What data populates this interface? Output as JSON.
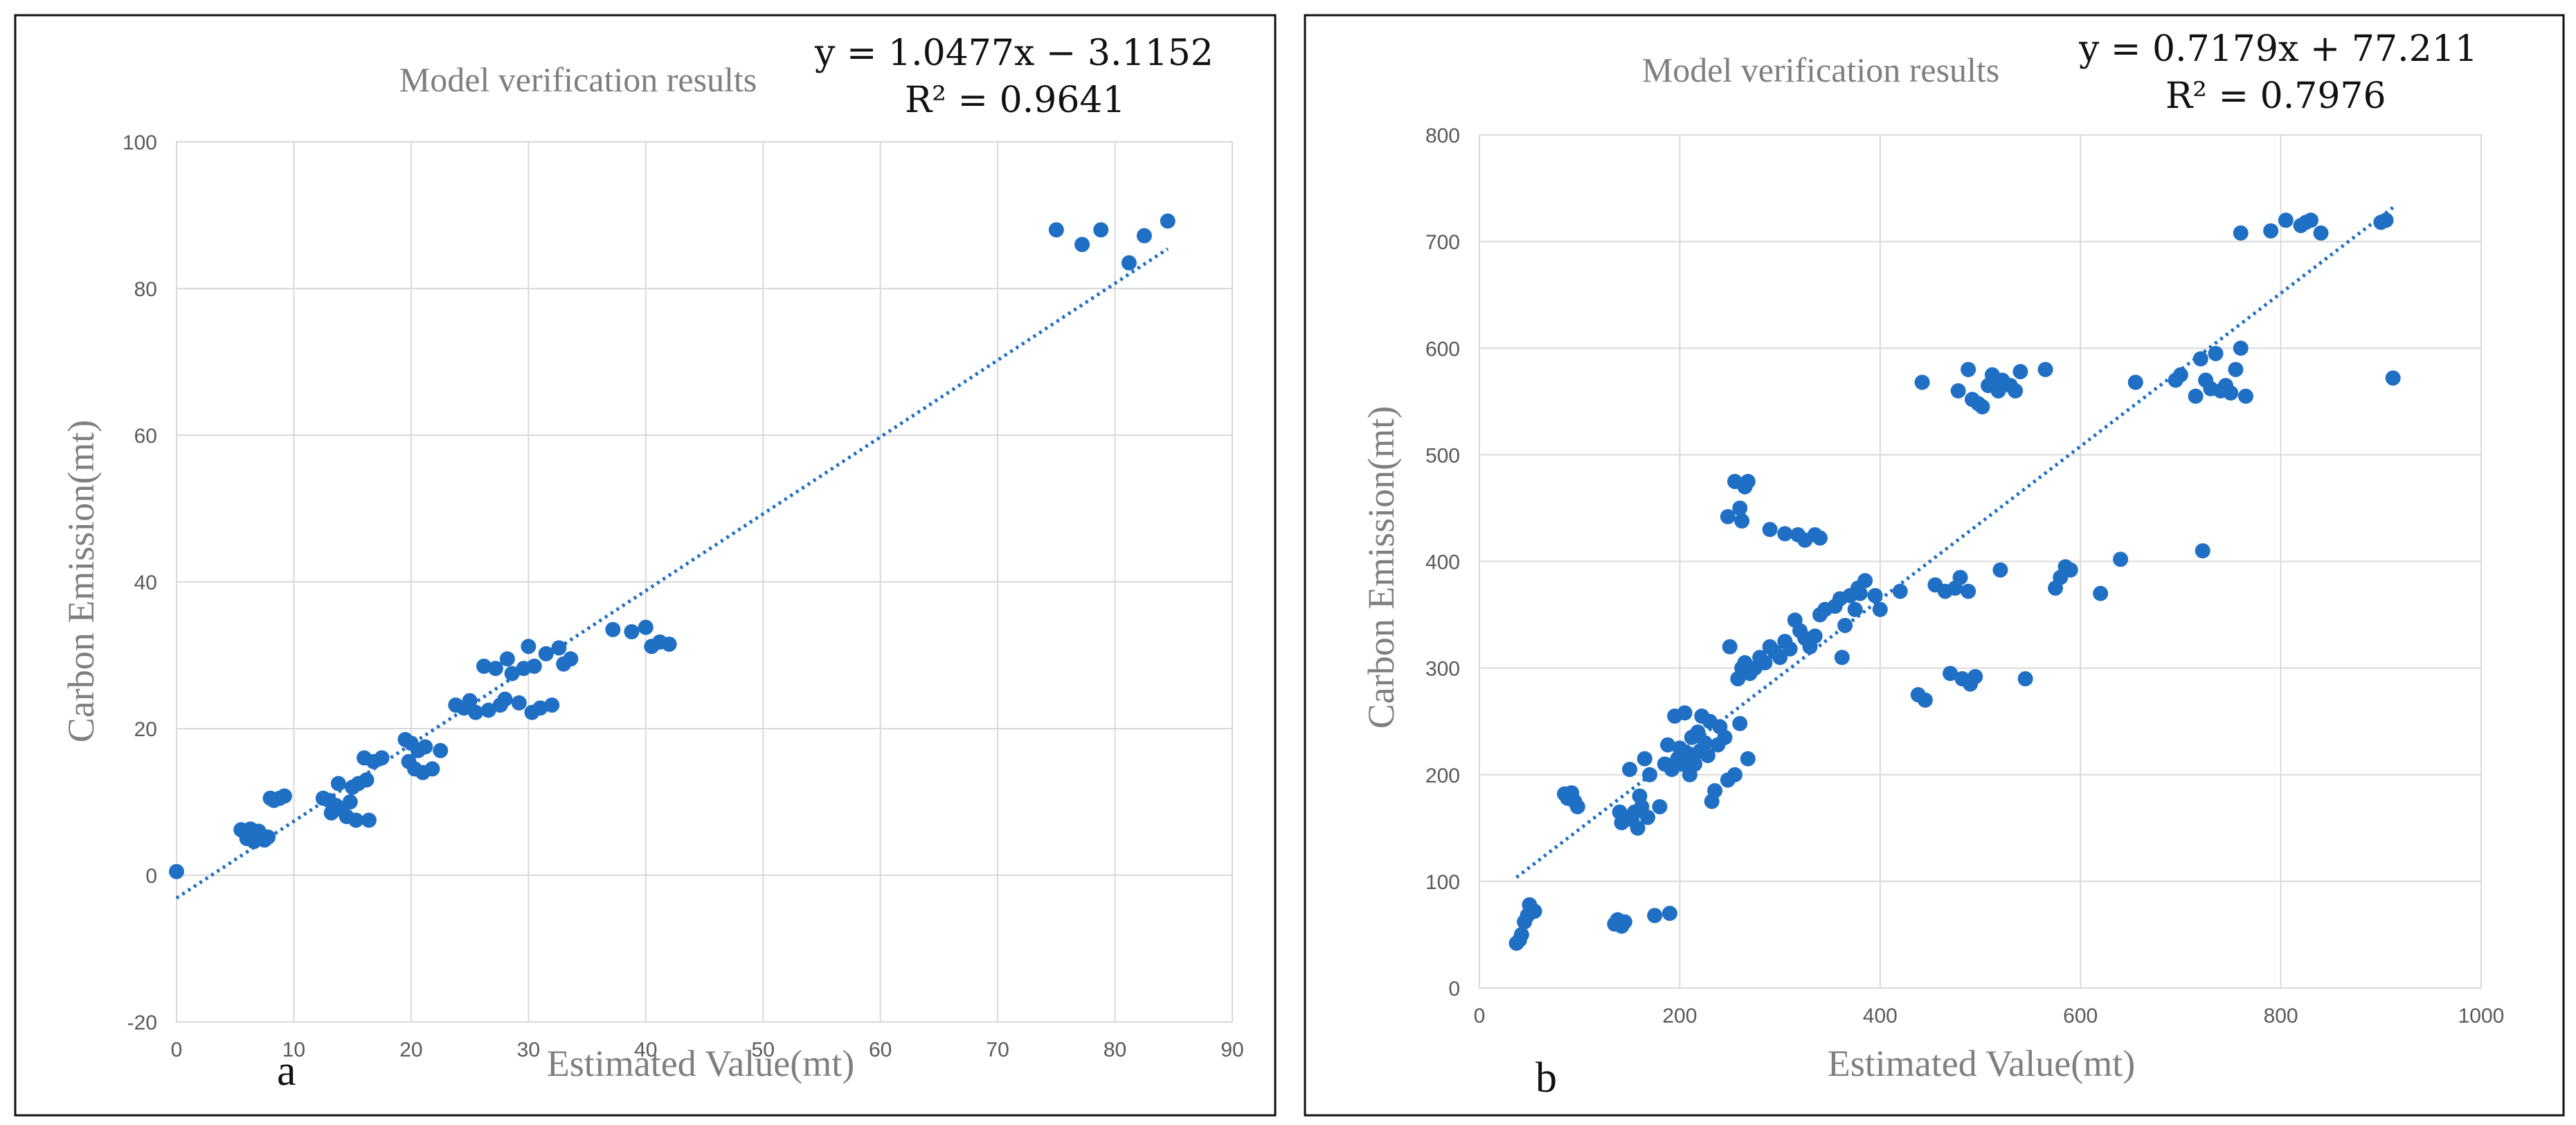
{
  "chart_data": [
    {
      "type": "scatter",
      "panel": "a",
      "title": "Model verification results",
      "xlabel": "Estimated Value(mt)",
      "ylabel": "Carbon Emission(mt)",
      "equation": "y = 1.0477x − 3.1152",
      "r_squared": "R² = 0.9641",
      "trendline": {
        "slope": 1.0477,
        "intercept": -3.1152,
        "x_start": 0,
        "x_end": 84.5
      },
      "xlim": [
        0,
        90
      ],
      "ylim": [
        -20,
        100
      ],
      "xticks": [
        0,
        10,
        20,
        30,
        40,
        50,
        60,
        70,
        80,
        90
      ],
      "yticks": [
        -20,
        0,
        20,
        40,
        60,
        80,
        100
      ],
      "grid": true,
      "points": [
        [
          0,
          0.5
        ],
        [
          5.5,
          6.2
        ],
        [
          6,
          5
        ],
        [
          6.3,
          6.3
        ],
        [
          6.6,
          4.6
        ],
        [
          7,
          6
        ],
        [
          7.2,
          5.5
        ],
        [
          7.5,
          4.8
        ],
        [
          7.8,
          5.2
        ],
        [
          8,
          10.5
        ],
        [
          8.3,
          10.2
        ],
        [
          8.8,
          10.5
        ],
        [
          9.2,
          10.8
        ],
        [
          12.5,
          10.5
        ],
        [
          13,
          10.2
        ],
        [
          13.2,
          8.5
        ],
        [
          13.6,
          9.5
        ],
        [
          13.8,
          12.5
        ],
        [
          14,
          9
        ],
        [
          14.5,
          8
        ],
        [
          14.8,
          10
        ],
        [
          15,
          12
        ],
        [
          15.3,
          7.5
        ],
        [
          15.5,
          12.5
        ],
        [
          16,
          16
        ],
        [
          16.2,
          13
        ],
        [
          16.4,
          7.5
        ],
        [
          16.8,
          15.5
        ],
        [
          17.5,
          16
        ],
        [
          19.5,
          18.5
        ],
        [
          19.8,
          15.5
        ],
        [
          20,
          18
        ],
        [
          20.3,
          14.5
        ],
        [
          20.6,
          17
        ],
        [
          21,
          14
        ],
        [
          21.2,
          17.5
        ],
        [
          21.8,
          14.5
        ],
        [
          22.5,
          17
        ],
        [
          23.8,
          23.2
        ],
        [
          24.5,
          22.8
        ],
        [
          25,
          23.8
        ],
        [
          25.5,
          22.2
        ],
        [
          26.2,
          28.5
        ],
        [
          26.6,
          22.5
        ],
        [
          27.2,
          28.2
        ],
        [
          27.6,
          23.2
        ],
        [
          28,
          24
        ],
        [
          28.2,
          29.5
        ],
        [
          28.6,
          27.5
        ],
        [
          29.2,
          23.5
        ],
        [
          29.6,
          28.2
        ],
        [
          30,
          31.2
        ],
        [
          30.3,
          22.2
        ],
        [
          30.5,
          28.5
        ],
        [
          31,
          22.8
        ],
        [
          31.5,
          30.2
        ],
        [
          32,
          23.2
        ],
        [
          32.6,
          31
        ],
        [
          33,
          28.8
        ],
        [
          33.6,
          29.5
        ],
        [
          37.2,
          33.5
        ],
        [
          38.8,
          33.2
        ],
        [
          40,
          33.8
        ],
        [
          40.5,
          31.2
        ],
        [
          41.2,
          31.8
        ],
        [
          42,
          31.5
        ],
        [
          75,
          88
        ],
        [
          77.2,
          86
        ],
        [
          78.8,
          88
        ],
        [
          81.2,
          83.5
        ],
        [
          82.5,
          87.2
        ],
        [
          84.5,
          89.2
        ]
      ]
    },
    {
      "type": "scatter",
      "panel": "b",
      "title": "Model verification results",
      "xlabel": "Estimated Value(mt)",
      "ylabel": "Carbon Emission(mt)",
      "equation": "y = 0.7179x + 77.211",
      "r_squared": "R² = 0.7976",
      "trendline": {
        "slope": 0.7179,
        "intercept": 77.211,
        "x_start": 37,
        "x_end": 912
      },
      "xlim": [
        0,
        1000
      ],
      "ylim": [
        0,
        800
      ],
      "xticks": [
        0,
        200,
        400,
        600,
        800,
        1000
      ],
      "yticks": [
        0,
        100,
        200,
        300,
        400,
        500,
        600,
        700,
        800
      ],
      "grid": true,
      "points": [
        [
          37,
          42
        ],
        [
          40,
          45
        ],
        [
          42,
          50
        ],
        [
          45,
          62
        ],
        [
          48,
          68
        ],
        [
          50,
          78
        ],
        [
          55,
          72
        ],
        [
          85,
          182
        ],
        [
          88,
          178
        ],
        [
          92,
          183
        ],
        [
          95,
          175
        ],
        [
          98,
          170
        ],
        [
          135,
          60
        ],
        [
          138,
          64
        ],
        [
          142,
          58
        ],
        [
          145,
          62
        ],
        [
          175,
          68
        ],
        [
          190,
          70
        ],
        [
          140,
          165
        ],
        [
          142,
          155
        ],
        [
          148,
          160
        ],
        [
          150,
          205
        ],
        [
          152,
          158
        ],
        [
          155,
          165
        ],
        [
          158,
          150
        ],
        [
          160,
          180
        ],
        [
          162,
          170
        ],
        [
          165,
          215
        ],
        [
          168,
          160
        ],
        [
          170,
          200
        ],
        [
          180,
          170
        ],
        [
          185,
          210
        ],
        [
          188,
          228
        ],
        [
          192,
          205
        ],
        [
          195,
          255
        ],
        [
          198,
          215
        ],
        [
          200,
          225
        ],
        [
          202,
          210
        ],
        [
          205,
          258
        ],
        [
          208,
          220
        ],
        [
          210,
          200
        ],
        [
          212,
          235
        ],
        [
          215,
          210
        ],
        [
          218,
          240
        ],
        [
          220,
          222
        ],
        [
          222,
          255
        ],
        [
          225,
          230
        ],
        [
          228,
          218
        ],
        [
          230,
          250
        ],
        [
          232,
          175
        ],
        [
          235,
          185
        ],
        [
          238,
          228
        ],
        [
          240,
          245
        ],
        [
          245,
          235
        ],
        [
          248,
          195
        ],
        [
          250,
          320
        ],
        [
          255,
          200
        ],
        [
          258,
          290
        ],
        [
          260,
          248
        ],
        [
          262,
          300
        ],
        [
          265,
          305
        ],
        [
          268,
          215
        ],
        [
          270,
          295
        ],
        [
          275,
          300
        ],
        [
          280,
          310
        ],
        [
          285,
          305
        ],
        [
          290,
          320
        ],
        [
          295,
          315
        ],
        [
          300,
          310
        ],
        [
          305,
          325
        ],
        [
          310,
          318
        ],
        [
          315,
          345
        ],
        [
          320,
          335
        ],
        [
          325,
          328
        ],
        [
          330,
          320
        ],
        [
          335,
          330
        ],
        [
          340,
          350
        ],
        [
          345,
          355
        ],
        [
          355,
          358
        ],
        [
          360,
          365
        ],
        [
          362,
          310
        ],
        [
          365,
          340
        ],
        [
          370,
          368
        ],
        [
          375,
          355
        ],
        [
          378,
          375
        ],
        [
          380,
          370
        ],
        [
          385,
          382
        ],
        [
          395,
          368
        ],
        [
          400,
          355
        ],
        [
          420,
          372
        ],
        [
          248,
          442
        ],
        [
          255,
          475
        ],
        [
          260,
          450
        ],
        [
          262,
          438
        ],
        [
          265,
          470
        ],
        [
          268,
          475
        ],
        [
          290,
          430
        ],
        [
          305,
          426
        ],
        [
          318,
          425
        ],
        [
          325,
          420
        ],
        [
          335,
          425
        ],
        [
          340,
          422
        ],
        [
          438,
          275
        ],
        [
          445,
          270
        ],
        [
          455,
          378
        ],
        [
          465,
          372
        ],
        [
          470,
          295
        ],
        [
          475,
          375
        ],
        [
          480,
          385
        ],
        [
          482,
          290
        ],
        [
          488,
          372
        ],
        [
          490,
          285
        ],
        [
          495,
          292
        ],
        [
          520,
          392
        ],
        [
          545,
          290
        ],
        [
          442,
          568
        ],
        [
          478,
          560
        ],
        [
          488,
          580
        ],
        [
          492,
          552
        ],
        [
          498,
          548
        ],
        [
          502,
          545
        ],
        [
          508,
          565
        ],
        [
          512,
          575
        ],
        [
          518,
          560
        ],
        [
          522,
          570
        ],
        [
          530,
          565
        ],
        [
          535,
          560
        ],
        [
          540,
          578
        ],
        [
          565,
          580
        ],
        [
          575,
          375
        ],
        [
          580,
          385
        ],
        [
          585,
          395
        ],
        [
          590,
          392
        ],
        [
          620,
          370
        ],
        [
          640,
          402
        ],
        [
          655,
          568
        ],
        [
          695,
          570
        ],
        [
          700,
          575
        ],
        [
          715,
          555
        ],
        [
          720,
          590
        ],
        [
          725,
          570
        ],
        [
          730,
          562
        ],
        [
          735,
          595
        ],
        [
          740,
          560
        ],
        [
          745,
          565
        ],
        [
          750,
          558
        ],
        [
          755,
          580
        ],
        [
          760,
          600
        ],
        [
          765,
          555
        ],
        [
          722,
          410
        ],
        [
          760,
          708
        ],
        [
          790,
          710
        ],
        [
          805,
          720
        ],
        [
          820,
          715
        ],
        [
          825,
          718
        ],
        [
          830,
          720
        ],
        [
          840,
          708
        ],
        [
          900,
          718
        ],
        [
          905,
          720
        ],
        [
          912,
          572
        ]
      ]
    }
  ],
  "panels": {
    "left_letter": "a",
    "right_letter": "b"
  }
}
